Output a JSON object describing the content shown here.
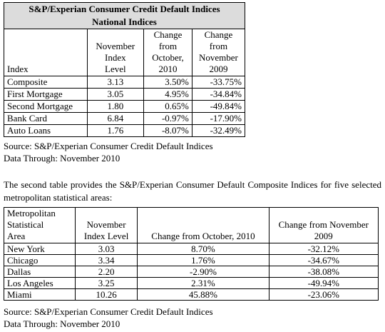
{
  "table1": {
    "title_line1": "S&P/Experian Consumer Credit Default Indices",
    "title_line2": "National Indices",
    "headers": {
      "index": "Index",
      "level": [
        "November",
        "Index",
        "Level"
      ],
      "oct": [
        "Change",
        "from",
        "October,",
        "2010"
      ],
      "nov": [
        "Change",
        "from",
        "November",
        "2009"
      ]
    },
    "rows": [
      {
        "name": "Composite",
        "level": "3.13",
        "oct": "3.50%",
        "nov": "-33.75%"
      },
      {
        "name": "First Mortgage",
        "level": "3.05",
        "oct": "4.95%",
        "nov": "-34.84%"
      },
      {
        "name": "Second Mortgage",
        "level": "1.80",
        "oct": "0.65%",
        "nov": "-49.84%"
      },
      {
        "name": "Bank Card",
        "level": "6.84",
        "oct": "-0.97%",
        "nov": "-17.90%"
      },
      {
        "name": "Auto Loans",
        "level": "1.76",
        "oct": "-8.07%",
        "nov": "-32.49%"
      }
    ],
    "source": "Source: S&P/Experian Consumer Credit Default Indices",
    "data_through": "Data Through: November 2010"
  },
  "paragraph": "The second table provides the S&P/Experian Consumer Default Composite Indices for five selected metropolitan statistical areas:",
  "table2": {
    "headers": {
      "area": [
        "Metropolitan",
        "Statistical",
        "Area"
      ],
      "level": [
        "November",
        "Index Level"
      ],
      "oct": "Change from October, 2010",
      "nov": [
        "Change from November",
        "2009"
      ]
    },
    "rows": [
      {
        "name": "New York",
        "level": "3.03",
        "oct": "8.70%",
        "nov": "-32.12%"
      },
      {
        "name": "Chicago",
        "level": "3.34",
        "oct": "1.76%",
        "nov": "-34.67%"
      },
      {
        "name": "Dallas",
        "level": "2.20",
        "oct": "-2.90%",
        "nov": "-38.08%"
      },
      {
        "name": "Los Angeles",
        "level": "3.25",
        "oct": "2.31%",
        "nov": "-49.94%"
      },
      {
        "name": "Miami",
        "level": "10.26",
        "oct": "45.88%",
        "nov": "-23.06%"
      }
    ],
    "source": "Source: S&P/Experian Consumer Credit Default Indices",
    "data_through": "Data Through: November 2010"
  }
}
